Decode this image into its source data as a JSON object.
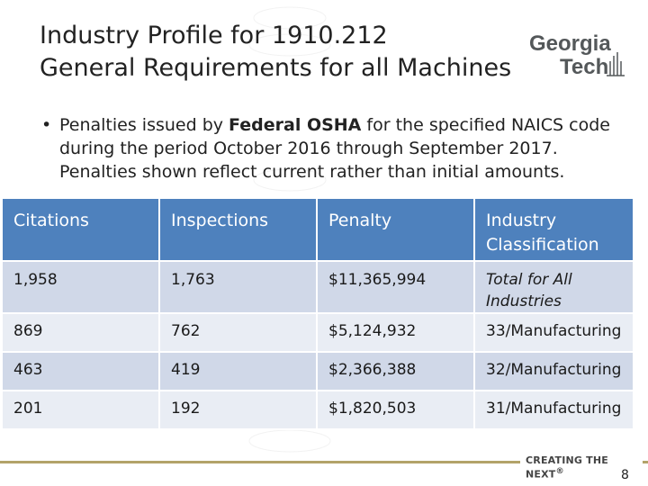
{
  "title": {
    "line1": "Industry Profile for 1910.212",
    "line2": "General Requirements for all Machines"
  },
  "logo": {
    "line1": "Georgia",
    "line2": "Tech",
    "icon": "tech-tower-icon"
  },
  "bullet": {
    "pre": "Penalties issued by ",
    "bold": "Federal OSHA",
    "post": " for the specified NAICS code during the period October 2016 through September 2017. Penalties shown reflect current rather than initial amounts."
  },
  "table": {
    "headers": [
      "Citations",
      "Inspections",
      "Penalty",
      "Industry Classification"
    ],
    "rows": [
      [
        "1,958",
        "1,763",
        "$11,365,994",
        "Total for All Industries"
      ],
      [
        "869",
        "762",
        "$5,124,932",
        "33/Manufacturing"
      ],
      [
        "463",
        "419",
        "$2,366,388",
        "32/Manufacturing"
      ],
      [
        "201",
        "192",
        "$1,820,503",
        "31/Manufacturing"
      ]
    ]
  },
  "footer": {
    "tagline": "CREATING THE NEXT",
    "page": "8"
  },
  "colors": {
    "header": "#4e81bd",
    "row_dark": "#d0d8e8",
    "row_light": "#e9edf4",
    "gold": "#b3a369"
  }
}
